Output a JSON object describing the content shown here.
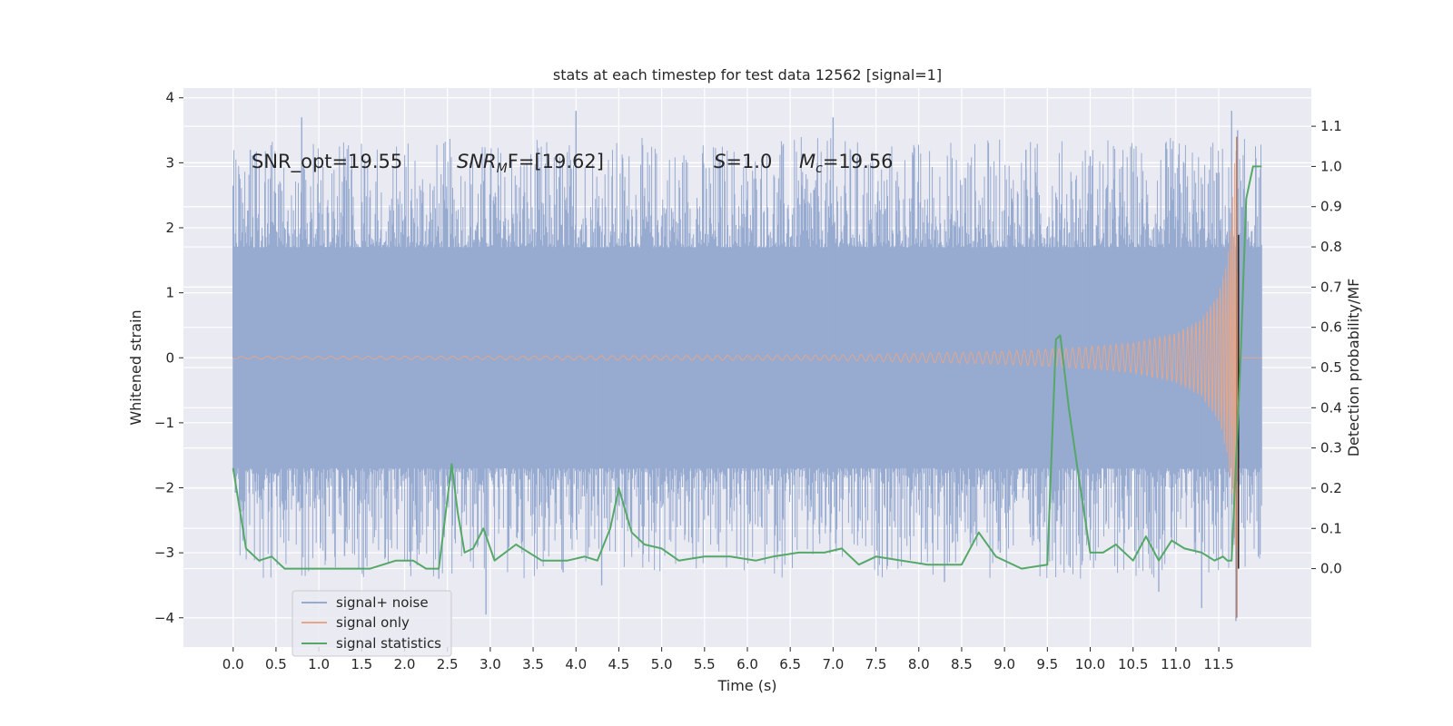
{
  "chart_data": {
    "type": "line",
    "title": "stats at each timestep for test data 12562 [signal=1]",
    "xlabel": "Time (s)",
    "ylabel_left": "Whitened strain",
    "ylabel_right": "Detection probability/MF",
    "xlim": [
      -0.58,
      12.58
    ],
    "ylim_left": [
      -4.45,
      4.15
    ],
    "ylim_right": [
      -0.195,
      1.195
    ],
    "xticks": [
      0.0,
      0.5,
      1.0,
      1.5,
      2.0,
      2.5,
      3.0,
      3.5,
      4.0,
      4.5,
      5.0,
      5.5,
      6.0,
      6.5,
      7.0,
      7.5,
      8.0,
      8.5,
      9.0,
      9.5,
      10.0,
      10.5,
      11.0,
      11.5
    ],
    "xtick_labels": [
      "0.0",
      "0.5",
      "1.0",
      "1.5",
      "2.0",
      "2.5",
      "3.0",
      "3.5",
      "4.0",
      "4.5",
      "5.0",
      "5.5",
      "6.0",
      "6.5",
      "7.0",
      "7.5",
      "8.0",
      "8.5",
      "9.0",
      "9.5",
      "10.0",
      "10.5",
      "11.0",
      "11.5"
    ],
    "yticks_left": [
      -4,
      -3,
      -2,
      -1,
      0,
      1,
      2,
      3,
      4
    ],
    "ytick_labels_left": [
      "−4",
      "−3",
      "−2",
      "−1",
      "0",
      "1",
      "2",
      "3",
      "4"
    ],
    "yticks_right": [
      0.0,
      0.1,
      0.2,
      0.3,
      0.4,
      0.5,
      0.6,
      0.7,
      0.8,
      0.9,
      1.0,
      1.1
    ],
    "ytick_labels_right": [
      "0.0",
      "0.1",
      "0.2",
      "0.3",
      "0.4",
      "0.5",
      "0.6",
      "0.7",
      "0.8",
      "0.9",
      "1.0",
      "1.1"
    ],
    "annotations": {
      "snr_opt": "SNR_opt=19.55",
      "snr_mf_base": "SNR",
      "snr_mf_sub": "M",
      "snr_mf_rest": "F=[19.62]",
      "s_var": "S",
      "s_val": "=1.0",
      "mc_var": "M",
      "mc_sub": "c",
      "mc_val": "=19.56"
    },
    "legend": {
      "position": "lower-left",
      "entries": [
        "signal+ noise",
        "signal only",
        "signal statistics"
      ]
    },
    "series": [
      {
        "name": "signal+ noise",
        "color": "#97aad0",
        "axis": "left",
        "kind": "noise-band",
        "x_range": [
          0.0,
          12.0
        ],
        "typical_amplitude": 1.7,
        "x": [
          0.0,
          0.2,
          0.8,
          1.3,
          2.4,
          2.95,
          3.85,
          4.0,
          4.3,
          7.0,
          8.3,
          8.95,
          9.25,
          10.0,
          10.8,
          11.3,
          11.65,
          11.7,
          11.72
        ],
        "values": [
          2.65,
          3.2,
          3.7,
          -3.05,
          -3.4,
          -3.95,
          -3.3,
          3.8,
          -3.5,
          3.7,
          -3.45,
          -3.0,
          3.2,
          3.1,
          -3.6,
          -3.85,
          3.8,
          -4.05,
          3.5
        ]
      },
      {
        "name": "signal only",
        "color": "#e6a789",
        "axis": "left",
        "kind": "chirp-envelope",
        "x": [
          0.0,
          7.0,
          8.0,
          9.0,
          9.5,
          10.0,
          10.5,
          11.0,
          11.3,
          11.5,
          11.6,
          11.65,
          11.7,
          11.74,
          12.0
        ],
        "values": [
          0.02,
          0.04,
          0.07,
          0.1,
          0.13,
          0.17,
          0.23,
          0.38,
          0.6,
          1.0,
          1.5,
          2.2,
          3.4,
          0.0,
          0.0
        ]
      },
      {
        "name": "signal statistics",
        "color": "#55a868",
        "axis": "right",
        "kind": "line",
        "x": [
          0.0,
          0.15,
          0.3,
          0.45,
          0.6,
          0.8,
          1.0,
          1.3,
          1.6,
          1.9,
          2.1,
          2.25,
          2.4,
          2.55,
          2.62,
          2.7,
          2.8,
          2.92,
          3.05,
          3.3,
          3.6,
          3.9,
          4.1,
          4.25,
          4.4,
          4.5,
          4.65,
          4.8,
          5.0,
          5.2,
          5.5,
          5.8,
          6.1,
          6.3,
          6.6,
          6.9,
          7.1,
          7.3,
          7.5,
          7.8,
          8.1,
          8.5,
          8.7,
          8.9,
          9.2,
          9.5,
          9.6,
          9.65,
          9.75,
          9.85,
          10.0,
          10.15,
          10.3,
          10.5,
          10.65,
          10.8,
          10.95,
          11.1,
          11.3,
          11.45,
          11.55,
          11.6,
          11.65,
          11.75,
          11.82,
          11.9,
          12.0
        ],
        "values": [
          0.25,
          0.05,
          0.02,
          0.03,
          0.0,
          0.0,
          0.0,
          0.0,
          0.0,
          0.02,
          0.02,
          0.0,
          0.0,
          0.26,
          0.14,
          0.04,
          0.05,
          0.1,
          0.02,
          0.06,
          0.02,
          0.02,
          0.03,
          0.02,
          0.1,
          0.2,
          0.09,
          0.06,
          0.05,
          0.02,
          0.03,
          0.03,
          0.02,
          0.03,
          0.04,
          0.04,
          0.05,
          0.01,
          0.03,
          0.02,
          0.01,
          0.01,
          0.09,
          0.03,
          0.0,
          0.01,
          0.57,
          0.58,
          0.4,
          0.25,
          0.04,
          0.04,
          0.06,
          0.02,
          0.08,
          0.02,
          0.07,
          0.05,
          0.04,
          0.02,
          0.03,
          0.02,
          0.02,
          0.5,
          0.92,
          1.0,
          1.0
        ]
      }
    ]
  }
}
